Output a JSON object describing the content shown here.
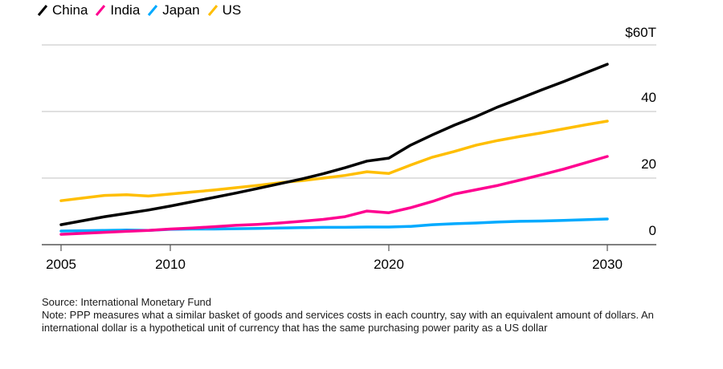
{
  "chart_data": {
    "type": "line",
    "title": "",
    "xlabel": "",
    "ylabel": "",
    "y_unit_label": "$60T",
    "xlim": [
      2005,
      2032
    ],
    "ylim": [
      0,
      60
    ],
    "x_ticks": [
      2005,
      2010,
      2020,
      2030
    ],
    "y_ticks": [
      {
        "value": 60,
        "label": "$60T"
      },
      {
        "value": 40,
        "label": "40"
      },
      {
        "value": 20,
        "label": "20"
      },
      {
        "value": 0,
        "label": "0"
      }
    ],
    "grid": true,
    "legend_position": "top-left",
    "x": [
      2005,
      2006,
      2007,
      2008,
      2009,
      2010,
      2011,
      2012,
      2013,
      2014,
      2015,
      2016,
      2017,
      2018,
      2019,
      2020,
      2021,
      2022,
      2023,
      2024,
      2025,
      2026,
      2027,
      2028,
      2029,
      2030
    ],
    "series": [
      {
        "name": "China",
        "color": "#000000",
        "values": [
          6.0,
          7.2,
          8.4,
          9.4,
          10.4,
          11.6,
          12.9,
          14.2,
          15.5,
          16.9,
          18.3,
          19.7,
          21.3,
          23.1,
          25.1,
          26.0,
          29.9,
          33.0,
          35.9,
          38.5,
          41.4,
          43.9,
          46.5,
          49.0,
          51.6,
          54.2
        ]
      },
      {
        "name": "India",
        "color": "#ff0090",
        "values": [
          3.1,
          3.4,
          3.7,
          4.0,
          4.3,
          4.7,
          5.0,
          5.4,
          5.8,
          6.1,
          6.5,
          7.0,
          7.6,
          8.4,
          10.1,
          9.6,
          11.1,
          13.0,
          15.2,
          16.5,
          17.8,
          19.4,
          21.0,
          22.7,
          24.6,
          26.5
        ]
      },
      {
        "name": "Japan",
        "color": "#00aaff",
        "values": [
          4.1,
          4.2,
          4.3,
          4.4,
          4.3,
          4.6,
          4.7,
          4.7,
          4.8,
          4.9,
          5.0,
          5.1,
          5.2,
          5.2,
          5.3,
          5.3,
          5.5,
          6.0,
          6.3,
          6.5,
          6.8,
          7.0,
          7.1,
          7.3,
          7.5,
          7.7
        ]
      },
      {
        "name": "US",
        "color": "#ffbe00",
        "values": [
          13.2,
          14.0,
          14.8,
          15.0,
          14.6,
          15.2,
          15.8,
          16.4,
          17.1,
          17.8,
          18.6,
          19.2,
          20.0,
          20.8,
          21.9,
          21.4,
          23.9,
          26.3,
          28.0,
          29.9,
          31.3,
          32.5,
          33.6,
          34.8,
          36.0,
          37.1
        ]
      }
    ]
  },
  "legend": [
    {
      "label": "China",
      "color": "#000000"
    },
    {
      "label": "India",
      "color": "#ff0090"
    },
    {
      "label": "Japan",
      "color": "#00aaff"
    },
    {
      "label": "US",
      "color": "#ffbe00"
    }
  ],
  "notes": {
    "source": "Source: International Monetary Fund",
    "note": "Note: PPP measures what a similar basket of goods and services costs in each country, say with an equivalent amount of dollars. An international dollar is a hypothetical unit of currency that has the same purchasing power parity as a US dollar"
  }
}
